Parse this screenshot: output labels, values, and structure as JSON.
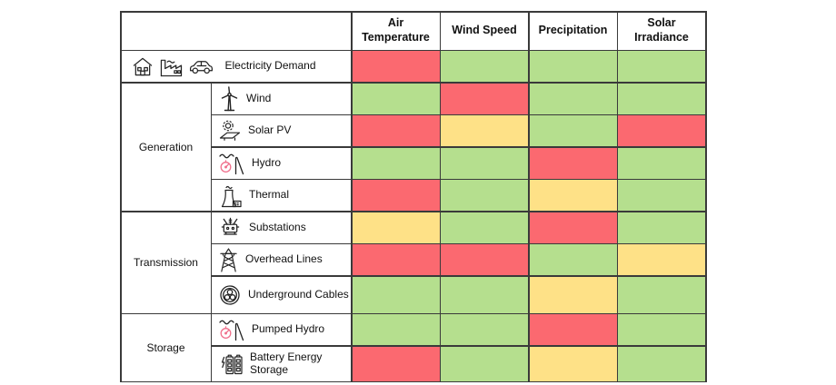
{
  "chart_data": {
    "type": "heatmap",
    "title": "",
    "columns": [
      "Air Temperature",
      "Wind Speed",
      "Precipitation",
      "Solar Irradiance"
    ],
    "row_groups": [
      {
        "label": "",
        "rows": [
          {
            "label": "Electricity Demand",
            "icons": [
              "house-icon",
              "factory-icon",
              "car-icon"
            ],
            "values": [
              "red",
              "green",
              "green",
              "green"
            ]
          }
        ]
      },
      {
        "label": "Generation",
        "rows": [
          {
            "label": "Wind",
            "icons": [
              "wind-turbine-icon"
            ],
            "values": [
              "green",
              "red",
              "green",
              "green"
            ]
          },
          {
            "label": "Solar PV",
            "icons": [
              "solar-pv-icon"
            ],
            "values": [
              "red",
              "yellow",
              "green",
              "red"
            ]
          },
          {
            "label": "Hydro",
            "icons": [
              "hydro-icon"
            ],
            "values": [
              "green",
              "green",
              "red",
              "green"
            ]
          },
          {
            "label": "Thermal",
            "icons": [
              "thermal-plant-icon"
            ],
            "values": [
              "red",
              "green",
              "yellow",
              "green"
            ]
          }
        ]
      },
      {
        "label": "Transmission",
        "rows": [
          {
            "label": "Substations",
            "icons": [
              "transformer-icon"
            ],
            "values": [
              "yellow",
              "green",
              "red",
              "green"
            ]
          },
          {
            "label": "Overhead Lines",
            "icons": [
              "transmission-tower-icon"
            ],
            "values": [
              "red",
              "red",
              "green",
              "yellow"
            ]
          },
          {
            "label": "Underground Cables",
            "icons": [
              "underground-cable-icon"
            ],
            "values": [
              "green",
              "green",
              "yellow",
              "green"
            ]
          }
        ]
      },
      {
        "label": "Storage",
        "rows": [
          {
            "label": "Pumped Hydro",
            "icons": [
              "pumped-hydro-icon"
            ],
            "values": [
              "green",
              "green",
              "red",
              "green"
            ]
          },
          {
            "label": "Battery Energy Storage",
            "icons": [
              "battery-storage-icon"
            ],
            "values": [
              "red",
              "green",
              "yellow",
              "green"
            ]
          }
        ]
      }
    ],
    "color_scale": {
      "red": "#FB6970",
      "yellow": "#FEE187",
      "green": "#B5DF8E"
    },
    "grid_color": "#3a3a3a",
    "legend": "none"
  }
}
